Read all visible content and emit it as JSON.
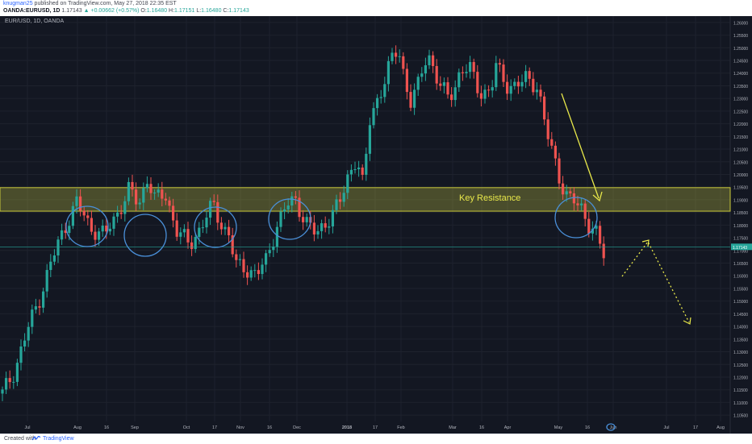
{
  "header": {
    "user": "knugman25",
    "published": "published on TradingView.com, May 27, 2018 22:35 EST",
    "pair": "OANDA:EURUSD, 1D",
    "price": "1.17143",
    "change": "▲ +0.00662 (+0.57%)",
    "o_label": "O:",
    "o_val": "1.16480",
    "h_label": "H:",
    "h_val": "1.17151",
    "l_label": "L:",
    "l_val": "1.16480",
    "c_label": "C:",
    "c_val": "1.17143"
  },
  "chart_data": {
    "type": "candlestick",
    "title": "EUR/USD, 1D, OANDA",
    "y_ticks": [
      "1.26000",
      "1.25500",
      "1.25000",
      "1.24500",
      "1.24000",
      "1.23500",
      "1.23000",
      "1.22500",
      "1.22000",
      "1.21500",
      "1.21000",
      "1.20500",
      "1.20000",
      "1.19500",
      "1.19000",
      "1.18500",
      "1.18000",
      "1.17500",
      "1.17000",
      "1.16500",
      "1.16000",
      "1.15500",
      "1.15000",
      "1.14500",
      "1.14000",
      "1.13500",
      "1.13000",
      "1.12500",
      "1.12000",
      "1.11500",
      "1.11000",
      "1.10500"
    ],
    "ylim": [
      1.1025,
      1.2625
    ],
    "x_ticks": [
      "Jul",
      "Aug",
      "16",
      "Sep",
      "Oct",
      "17",
      "Nov",
      "16",
      "Dec",
      "2018",
      "17",
      "Feb",
      "Mar",
      "16",
      "Apr",
      "May",
      "16",
      "Jun",
      "Jul",
      "17",
      "Aug"
    ],
    "price_label": "1.17143",
    "last_price": 1.17143,
    "key_resistance": {
      "label": "Key Resistance",
      "low": 1.1855,
      "high": 1.1948
    },
    "circles": 6,
    "trend_arrow_color": "#e8e84a",
    "up_color": "#26a69a",
    "down_color": "#ef5350",
    "background": "#131722"
  },
  "footer": {
    "created": "Created with",
    "brand": "TradingView"
  }
}
